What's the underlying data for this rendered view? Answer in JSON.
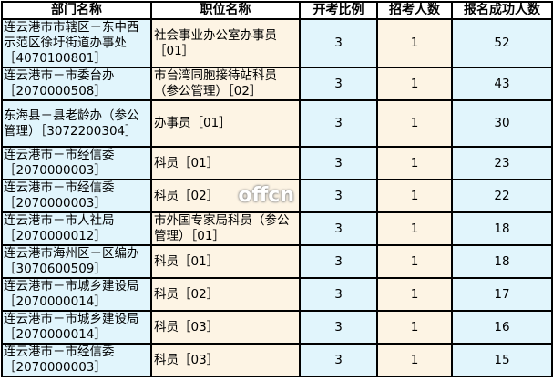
{
  "headers": [
    "部门名称",
    "职位名称",
    "开考比例",
    "招考人数",
    "报名成功人数"
  ],
  "rows": [
    {
      "dept": "连云港市市辖区－东中西示范区徐圩街道办事处［4070100801］",
      "pos": "社会事业办公室办事员［01］",
      "ratio": "3",
      "recruit": "1",
      "applied": "52"
    },
    {
      "dept": "连云港市－市委台办［2070000508］",
      "pos": "市台湾同胞接待站科员（参公管理）［02］",
      "ratio": "3",
      "recruit": "1",
      "applied": "43"
    },
    {
      "dept": "东海县－县老龄办（参公管理）［3072200304］",
      "pos": "办事员［01］",
      "ratio": "3",
      "recruit": "1",
      "applied": "30"
    },
    {
      "dept": "连云港市－市经信委［2070000003］",
      "pos": "科员［01］",
      "ratio": "3",
      "recruit": "1",
      "applied": "23"
    },
    {
      "dept": "连云港市－市经信委［2070000003］",
      "pos": "科员［02］",
      "ratio": "3",
      "recruit": "1",
      "applied": "22"
    },
    {
      "dept": "连云港市－市人社局［2070000012］",
      "pos": "市外国专家局科员（参公管理）［01］",
      "ratio": "3",
      "recruit": "1",
      "applied": "18"
    },
    {
      "dept": "连云港市海州区－区编办［3070600509］",
      "pos": "科员［01］",
      "ratio": "3",
      "recruit": "1",
      "applied": "18"
    },
    {
      "dept": "连云港市－市城乡建设局［2070000014］",
      "pos": "科员［02］",
      "ratio": "3",
      "recruit": "1",
      "applied": "17"
    },
    {
      "dept": "连云港市－市城乡建设局［2070000014］",
      "pos": "科员［03］",
      "ratio": "3",
      "recruit": "1",
      "applied": "16"
    },
    {
      "dept": "连云港市－市经信委［2070000003］",
      "pos": "科员［03］",
      "ratio": "3",
      "recruit": "1",
      "applied": "15"
    }
  ],
  "watermark": "offcn",
  "colors": {
    "blue_cell": "#e1f5fc",
    "beige_cell": "#fdf4e4",
    "border": "#000000"
  }
}
